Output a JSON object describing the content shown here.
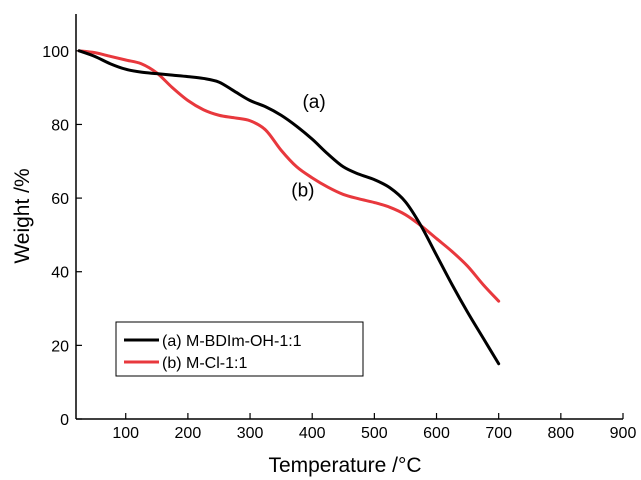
{
  "chart_data": {
    "type": "line",
    "xlabel": "Temperature /°C",
    "ylabel": "Weight /%",
    "xlim": [
      20,
      900
    ],
    "ylim": [
      0,
      110
    ],
    "xticks": [
      100,
      200,
      300,
      400,
      500,
      600,
      700,
      800,
      900
    ],
    "yticks": [
      0,
      20,
      40,
      60,
      80,
      100
    ],
    "grid": false,
    "legend_position": "bottom-left",
    "series": [
      {
        "name": "(a) M-BDIm-OH-1:1",
        "color": "#000000",
        "x": [
          25,
          50,
          75,
          100,
          125,
          150,
          175,
          200,
          225,
          250,
          275,
          300,
          325,
          350,
          375,
          400,
          425,
          450,
          475,
          500,
          525,
          550,
          575,
          600,
          625,
          650,
          675,
          700
        ],
        "y": [
          100,
          98.5,
          96.5,
          95.0,
          94.2,
          93.8,
          93.4,
          93.0,
          92.5,
          91.5,
          89.0,
          86.5,
          84.8,
          82.5,
          79.5,
          76.0,
          72.0,
          68.5,
          66.5,
          65.0,
          62.8,
          59.0,
          52.5,
          44.5,
          36.5,
          29.0,
          22.0,
          15.0
        ]
      },
      {
        "name": "(b) M-Cl-1:1",
        "color": "#e8383d",
        "x": [
          25,
          50,
          75,
          100,
          125,
          150,
          175,
          200,
          225,
          250,
          275,
          300,
          325,
          350,
          375,
          400,
          425,
          450,
          475,
          500,
          525,
          550,
          575,
          600,
          625,
          650,
          675,
          700
        ],
        "y": [
          100,
          99.5,
          98.5,
          97.5,
          96.5,
          94.0,
          90.0,
          86.5,
          84.0,
          82.5,
          81.8,
          81.0,
          78.5,
          73.0,
          68.5,
          65.5,
          63.0,
          61.0,
          59.8,
          58.8,
          57.5,
          55.5,
          52.5,
          49.0,
          45.5,
          41.5,
          36.5,
          32.0
        ]
      }
    ],
    "annotations": [
      {
        "text": "(a)",
        "x": 403,
        "y": 84.5
      },
      {
        "text": "(b)",
        "x": 385,
        "y": 60.5
      }
    ]
  }
}
